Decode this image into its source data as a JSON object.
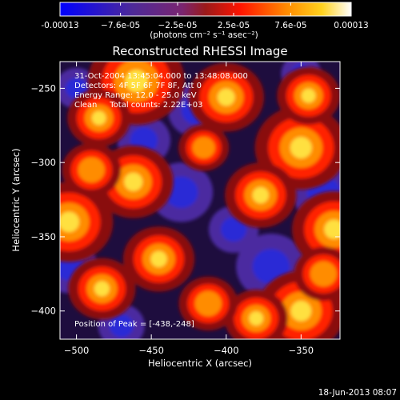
{
  "chart_data": {
    "type": "heatmap",
    "title": "Reconstructed RHESSI Image",
    "xlabel": "Heliocentric X (arcsec)",
    "ylabel": "Heliocentric Y (arcsec)",
    "xlim": [
      -511,
      -324
    ],
    "ylim": [
      -419,
      -232
    ],
    "x_ticks": [
      -500,
      -450,
      -400,
      -350
    ],
    "y_ticks": [
      -250,
      -300,
      -350,
      -400
    ],
    "colorbar": {
      "min": -0.00013,
      "max": 0.00013,
      "tick_values": [
        -0.00013,
        -7.6e-05,
        -2.5e-05,
        2.5e-05,
        7.6e-05,
        0.00013
      ],
      "tick_labels": [
        "-0.00013",
        "−7.6e-05",
        "−2.5e-05",
        "2.5e-05",
        "7.6e-05",
        "0.00013"
      ],
      "unit_label": "(photons cm⁻² s⁻¹ asec⁻²)"
    },
    "annotations": [
      "31-Oct-2004 13:45:04.000 to 13:48:08.000",
      "Detectors: 4F 5F 6F 7F 8F, Att 0",
      "Energy Range: 12.0 - 25.0 keV",
      "Clean     Total counts: 2.22E+03"
    ],
    "peak_label": "Position of Peak = [-438,-248]",
    "peak": [
      -438,
      -248
    ],
    "hot_spots": [
      {
        "x": -460,
        "y": -245,
        "v": 1.0
      },
      {
        "x": -350,
        "y": -290,
        "v": 0.95
      },
      {
        "x": -505,
        "y": -340,
        "v": 0.9
      },
      {
        "x": -462,
        "y": -313,
        "v": 0.8
      },
      {
        "x": -350,
        "y": -400,
        "v": 0.9
      },
      {
        "x": -328,
        "y": -345,
        "v": 0.85
      },
      {
        "x": -400,
        "y": -256,
        "v": 0.75
      },
      {
        "x": -377,
        "y": -322,
        "v": 0.7
      },
      {
        "x": -483,
        "y": -385,
        "v": 0.65
      },
      {
        "x": -445,
        "y": -365,
        "v": 0.7
      },
      {
        "x": -485,
        "y": -270,
        "v": 0.6
      },
      {
        "x": -380,
        "y": -405,
        "v": 0.6
      },
      {
        "x": -412,
        "y": -395,
        "v": 0.55
      },
      {
        "x": -345,
        "y": -255,
        "v": 0.6
      },
      {
        "x": -490,
        "y": -305,
        "v": 0.55
      },
      {
        "x": -415,
        "y": -290,
        "v": 0.45
      },
      {
        "x": -335,
        "y": -375,
        "v": 0.55
      }
    ],
    "cold_spots": [
      {
        "x": -420,
        "y": -265,
        "v": -0.7
      },
      {
        "x": -430,
        "y": -320,
        "v": -0.8
      },
      {
        "x": -370,
        "y": -370,
        "v": -0.9
      },
      {
        "x": -335,
        "y": -320,
        "v": -0.8
      },
      {
        "x": -505,
        "y": -370,
        "v": -0.7
      },
      {
        "x": -455,
        "y": -285,
        "v": -0.65
      },
      {
        "x": -395,
        "y": -345,
        "v": -0.6
      },
      {
        "x": -340,
        "y": -390,
        "v": -0.7
      },
      {
        "x": -500,
        "y": -250,
        "v": -0.5
      },
      {
        "x": -470,
        "y": -410,
        "v": -0.55
      },
      {
        "x": -350,
        "y": -240,
        "v": -0.45
      }
    ],
    "grid": false
  },
  "footer": {
    "date": "18-Jun-2013 08:07"
  }
}
